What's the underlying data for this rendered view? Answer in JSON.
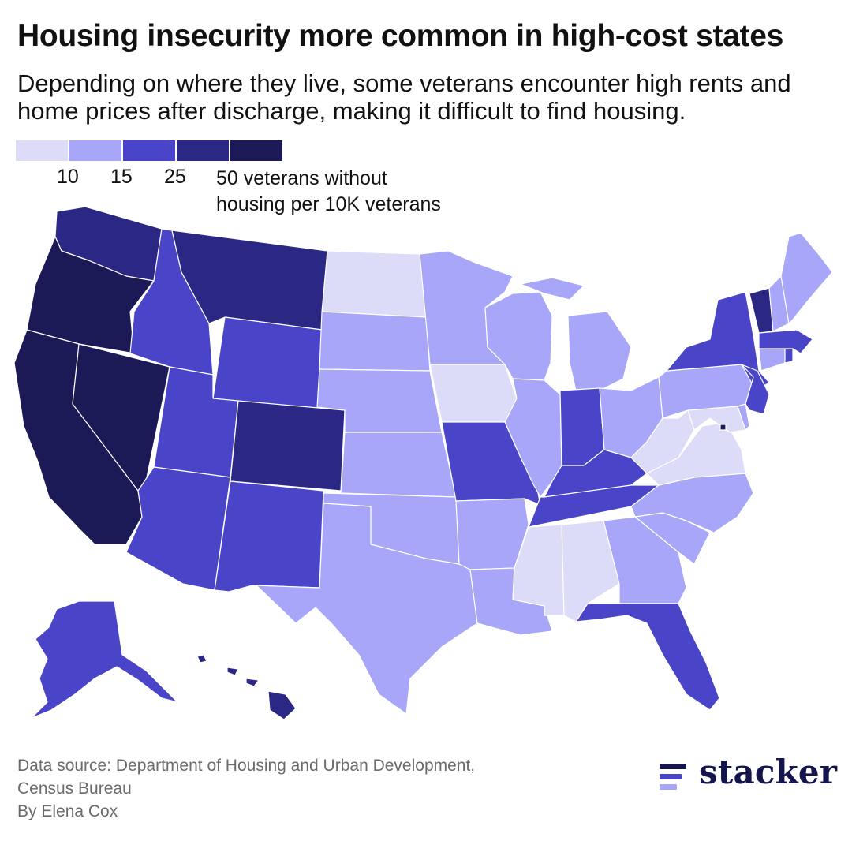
{
  "title": "Housing insecurity more common in high-cost states",
  "subtitle": "Depending on where they live, some veterans encounter high rents and home prices after discharge, making it difficult to find housing.",
  "legend": {
    "colors": [
      "#dcdcf8",
      "#a7a6f8",
      "#4a45c8",
      "#2b2784",
      "#1b1956"
    ],
    "ticks": [
      "10",
      "15",
      "25"
    ],
    "unit_line1": "50 veterans without",
    "unit_line2": "housing per 10K veterans"
  },
  "map": {
    "region": "United States",
    "bins": [
      "<10",
      "10-15",
      "15-25",
      "25-50",
      ">50"
    ],
    "states": {
      "WA": 3,
      "OR": 4,
      "CA": 4,
      "NV": 4,
      "ID": 2,
      "MT": 3,
      "WY": 2,
      "UT": 2,
      "CO": 3,
      "AZ": 2,
      "NM": 2,
      "AK": 2,
      "HI": 3,
      "ND": 0,
      "SD": 1,
      "NE": 1,
      "KS": 1,
      "OK": 1,
      "TX": 1,
      "MN": 1,
      "IA": 0,
      "MO": 2,
      "AR": 1,
      "LA": 1,
      "WI": 1,
      "IL": 1,
      "MI": 1,
      "IN": 2,
      "OH": 1,
      "KY": 2,
      "TN": 2,
      "MS": 0,
      "AL": 0,
      "GA": 1,
      "FL": 2,
      "SC": 1,
      "NC": 1,
      "VA": 0,
      "WV": 0,
      "MD": 0,
      "DE": 1,
      "DC": 4,
      "PA": 1,
      "NJ": 2,
      "NY": 2,
      "CT": 1,
      "RI": 2,
      "MA": 2,
      "VT": 3,
      "NH": 1,
      "ME": 1
    }
  },
  "source": {
    "line1": "Data source: Department of Housing and Urban Development,",
    "line2": "Census Bureau",
    "byline": "By Elena Cox"
  },
  "brand": {
    "name": "stacker",
    "colors": [
      "#15154d",
      "#4a45c8",
      "#a7a6f8"
    ]
  }
}
